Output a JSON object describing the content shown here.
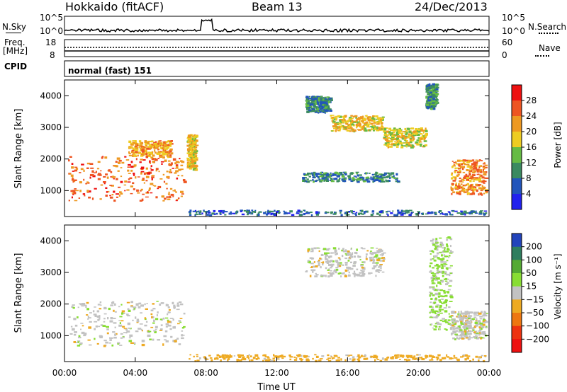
{
  "header": {
    "station": "Hokkaido (fitACF)",
    "beam": "Beam 13",
    "date": "24/Dec/2013"
  },
  "sky_panel": {
    "left_label": "N.Sky",
    "right_label": "N.Search",
    "left_ticks": [
      "10^5",
      "10^0"
    ],
    "right_ticks": [
      "10^5",
      "10^0"
    ]
  },
  "freq_panel": {
    "left_label_1": "Freq.",
    "left_label_2": "[MHz]",
    "right_label": "Nave",
    "left_ticks": [
      "18",
      "8"
    ],
    "right_ticks": [
      "60",
      "0"
    ]
  },
  "cpid_panel": {
    "label": "CPID",
    "value": "normal (fast) 151"
  },
  "chart_data": [
    {
      "type": "heatmap",
      "xlabel": "Time UT",
      "ylabel": "Slant Range [km]",
      "x_ticks": [
        "00:00",
        "04:00",
        "08:00",
        "12:00",
        "16:00",
        "20:00",
        "00:00"
      ],
      "y_ticks": [
        "1000",
        "2000",
        "3000",
        "4000"
      ],
      "xlim_hours": [
        0,
        24
      ],
      "ylim_km": [
        180,
        4500
      ],
      "colorbar": {
        "label": "Power [dB]",
        "ticks": [
          "4",
          "8",
          "12",
          "16",
          "20",
          "24",
          "28"
        ],
        "colors": [
          "#2222ee",
          "#2255bb",
          "#3a8a60",
          "#66bb44",
          "#eecc22",
          "#ee9922",
          "#ee5522",
          "#ee1111"
        ]
      },
      "regions": [
        {
          "t0": 0.2,
          "t1": 6.8,
          "r0": 700,
          "r1": 2100,
          "v": 28
        },
        {
          "t0": 3.6,
          "t1": 6.0,
          "r0": 2100,
          "r1": 2600,
          "v": 24
        },
        {
          "t0": 6.9,
          "t1": 7.4,
          "r0": 1700,
          "r1": 2800,
          "v": 22
        },
        {
          "t0": 13.6,
          "t1": 15.0,
          "r0": 3500,
          "r1": 4000,
          "v": 12
        },
        {
          "t0": 15.0,
          "t1": 18.0,
          "r0": 2900,
          "r1": 3400,
          "v": 22
        },
        {
          "t0": 18.0,
          "t1": 20.4,
          "r0": 2400,
          "r1": 3000,
          "v": 20
        },
        {
          "t0": 20.4,
          "t1": 21.0,
          "r0": 3600,
          "r1": 4400,
          "v": 14
        },
        {
          "t0": 21.8,
          "t1": 23.8,
          "r0": 900,
          "r1": 2000,
          "v": 26
        },
        {
          "t0": 13.4,
          "t1": 18.8,
          "r0": 1300,
          "r1": 1600,
          "v": 12
        },
        {
          "t0": 7.0,
          "t1": 23.8,
          "r0": 250,
          "r1": 400,
          "v": 10
        }
      ]
    },
    {
      "type": "heatmap",
      "xlabel": "Time UT",
      "ylabel": "Slant Range [km]",
      "x_ticks": [
        "00:00",
        "04:00",
        "08:00",
        "12:00",
        "16:00",
        "20:00",
        "00:00"
      ],
      "y_ticks": [
        "1000",
        "2000",
        "3000",
        "4000"
      ],
      "xlim_hours": [
        0,
        24
      ],
      "ylim_km": [
        180,
        4500
      ],
      "colorbar": {
        "label": "Velocity [m s⁻¹]",
        "ticks": [
          "200",
          "100",
          "50",
          "15",
          "−15",
          "−50",
          "−100",
          "−200"
        ],
        "colors": [
          "#2244bb",
          "#2f7e5f",
          "#55aa33",
          "#88dd33",
          "#c2c2c2",
          "#eeaa22",
          "#ee7711",
          "#ee3311",
          "#ee1111"
        ]
      },
      "regions": [
        {
          "t0": 0.2,
          "t1": 6.8,
          "r0": 700,
          "r1": 2100,
          "v": 0
        },
        {
          "t0": 13.6,
          "t1": 18.0,
          "r0": 2900,
          "r1": 3800,
          "v": 0
        },
        {
          "t0": 20.6,
          "t1": 21.8,
          "r0": 1200,
          "r1": 4200,
          "v": 20
        },
        {
          "t0": 21.8,
          "t1": 23.8,
          "r0": 900,
          "r1": 1800,
          "v": 0
        },
        {
          "t0": 7.0,
          "t1": 23.8,
          "r0": 220,
          "r1": 420,
          "v": -30
        }
      ]
    }
  ]
}
